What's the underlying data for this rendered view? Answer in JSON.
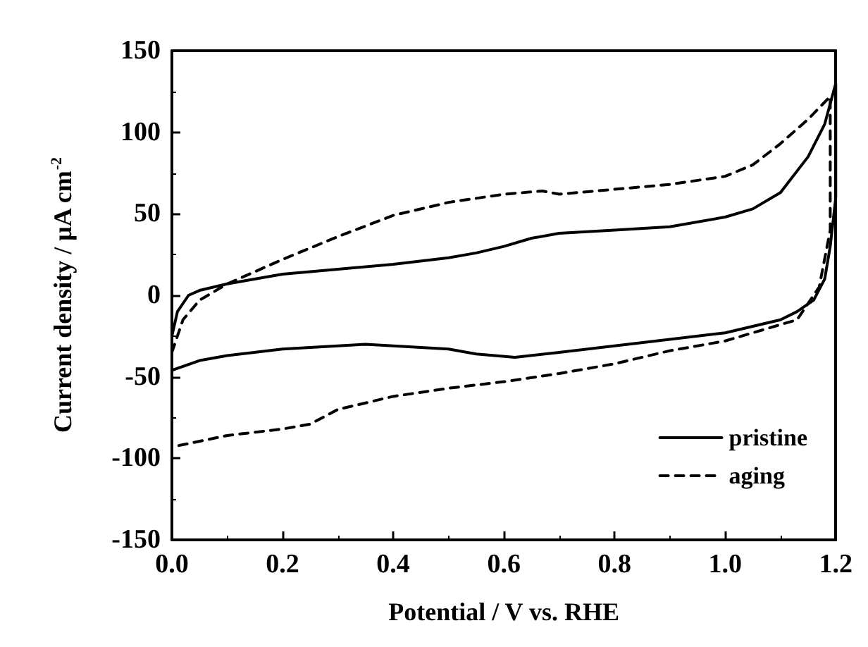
{
  "chart_data": {
    "type": "line",
    "xlabel": "Potential / V vs. RHE",
    "ylabel": "Current density / μA cm$^{-2}$",
    "xlim": [
      0,
      1.2
    ],
    "ylim": [
      -150,
      150
    ],
    "xticks": [
      {
        "value": 0,
        "label": "0.0"
      },
      {
        "value": 0.2,
        "label": "0.2"
      },
      {
        "value": 0.4,
        "label": "0.4"
      },
      {
        "value": 0.6,
        "label": "0.6"
      },
      {
        "value": 0.8,
        "label": "0.8"
      },
      {
        "value": 1.0,
        "label": "1.0"
      },
      {
        "value": 1.2,
        "label": "1.2"
      }
    ],
    "yticks": [
      -150,
      -100,
      -50,
      0,
      50,
      100,
      150
    ],
    "grid": false,
    "legend": "bottom right",
    "marker": "none",
    "series": [
      {
        "name": "pristine",
        "color": "#000000",
        "line_style": "solid",
        "x": [
          0,
          0.01,
          0.03,
          0.05,
          0.1,
          0.2,
          0.3,
          0.4,
          0.5,
          0.55,
          0.6,
          0.65,
          0.7,
          0.8,
          0.9,
          1.0,
          1.05,
          1.1,
          1.15,
          1.18,
          1.2,
          1.2,
          1.19,
          1.18,
          1.16,
          1.13,
          1.1,
          1.05,
          1.0,
          0.9,
          0.8,
          0.7,
          0.62,
          0.55,
          0.5,
          0.4,
          0.35,
          0.3,
          0.2,
          0.1,
          0.05,
          0
        ],
        "values": [
          -25,
          -10,
          0,
          3,
          7,
          13,
          16,
          19,
          23,
          26,
          30,
          35,
          38,
          40,
          42,
          48,
          53,
          63,
          85,
          105,
          130,
          60,
          30,
          10,
          -3,
          -10,
          -15,
          -19,
          -23,
          -27,
          -31,
          -35,
          -38,
          -36,
          -33,
          -31,
          -30,
          -31,
          -33,
          -37,
          -40,
          -46
        ]
      },
      {
        "name": "aging",
        "color": "#000000",
        "line_style": "dashed",
        "x": [
          0,
          0.02,
          0.05,
          0.1,
          0.2,
          0.3,
          0.4,
          0.5,
          0.6,
          0.67,
          0.7,
          0.8,
          0.9,
          1.0,
          1.05,
          1.1,
          1.15,
          1.19,
          1.19,
          1.17,
          1.13,
          1.05,
          1.0,
          0.9,
          0.8,
          0.7,
          0.6,
          0.5,
          0.4,
          0.3,
          0.25,
          0.2,
          0.1,
          0
        ],
        "values": [
          -35,
          -15,
          -3,
          7,
          22,
          36,
          49,
          57,
          62,
          64,
          62,
          65,
          68,
          73,
          80,
          93,
          108,
          122,
          40,
          5,
          -15,
          -23,
          -28,
          -34,
          -42,
          -48,
          -53,
          -57,
          -62,
          -70,
          -79,
          -82,
          -86,
          -93
        ]
      }
    ]
  }
}
